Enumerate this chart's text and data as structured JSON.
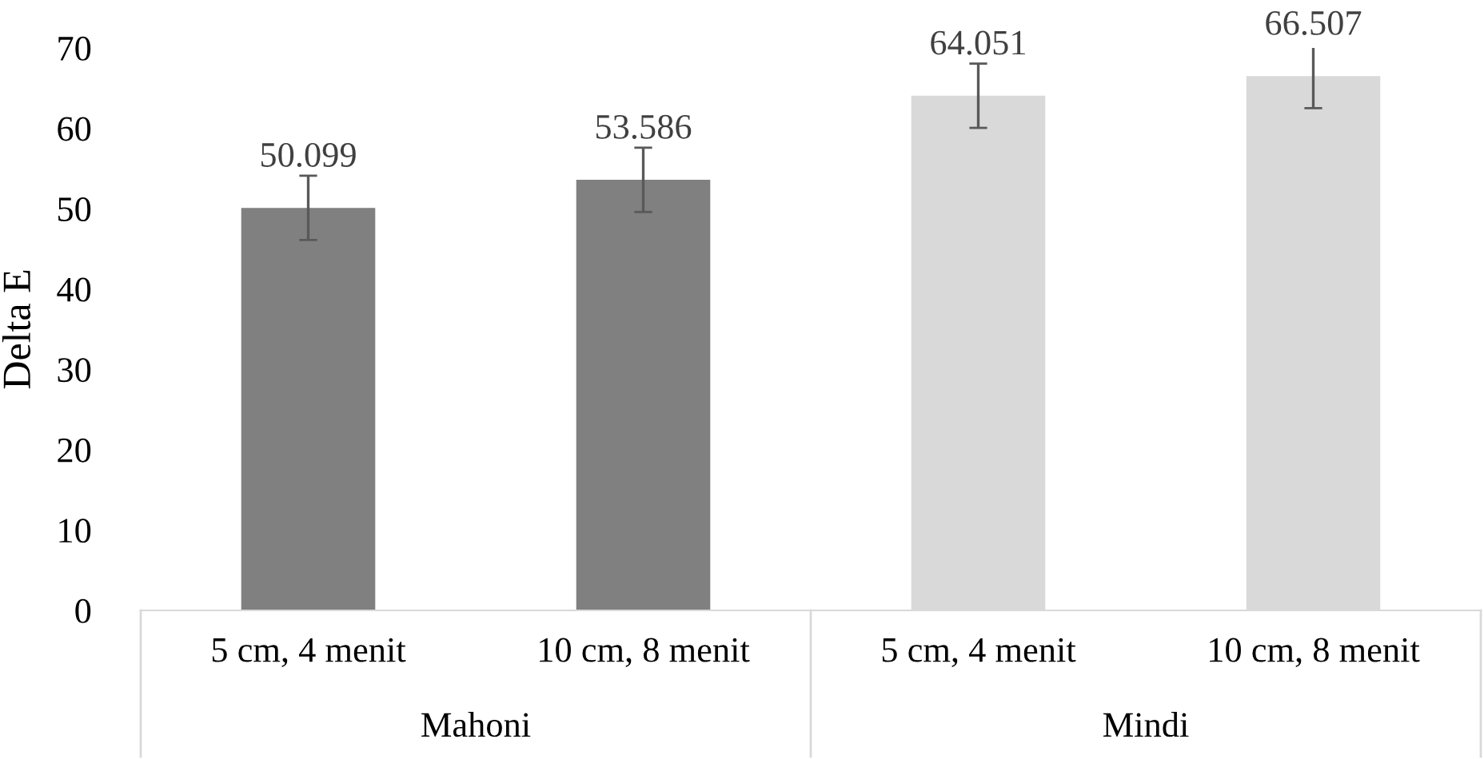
{
  "chart_data": {
    "type": "bar",
    "ylabel": "Delta E",
    "categories": [
      "5 cm, 4 menit",
      "10 cm, 8 menit",
      "5 cm, 4 menit",
      "10 cm, 8 menit"
    ],
    "values": [
      50.099,
      53.586,
      64.051,
      66.507
    ],
    "colors": [
      "#808080",
      "#808080",
      "#d9d9d9",
      "#d9d9d9"
    ],
    "errors": [
      4,
      4,
      4,
      4
    ],
    "data_labels": true,
    "annotations": [
      "Mahoni",
      "Mindi"
    ],
    "ylim": [
      0,
      70
    ],
    "yticks": [
      0,
      10,
      20,
      30,
      40,
      50,
      60,
      70
    ],
    "grid": false
  }
}
